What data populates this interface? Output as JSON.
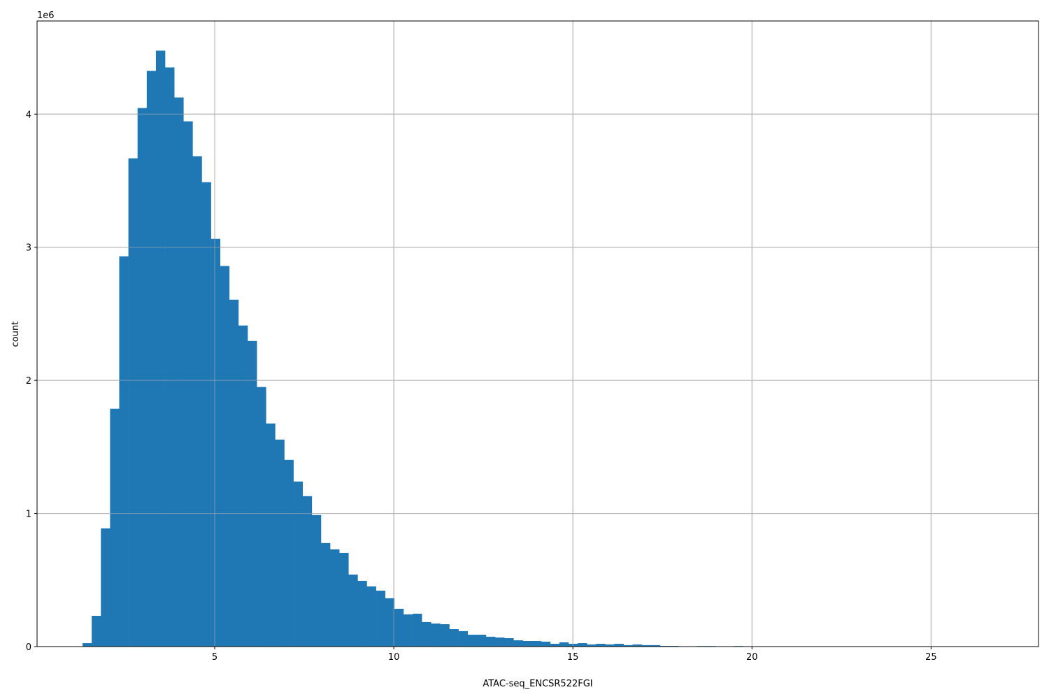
{
  "chart_data": {
    "type": "bar",
    "subtype": "histogram",
    "title": "",
    "xlabel": "ATAC-seq_ENCSR522FGI",
    "ylabel": "count",
    "y_offset_label": "1e6",
    "xlim": [
      0.04,
      28.0
    ],
    "ylim": [
      0,
      4700000
    ],
    "grid": true,
    "bar_color": "#1f77b4",
    "grid_color": "#b0b0b0",
    "x_ticks": [
      5,
      10,
      15,
      20,
      25
    ],
    "x_tick_labels": [
      "5",
      "10",
      "15",
      "20",
      "25"
    ],
    "y_ticks": [
      0,
      1000000,
      2000000,
      3000000,
      4000000
    ],
    "y_tick_labels": [
      "0",
      "1",
      "2",
      "3",
      "4"
    ],
    "bin_start": 1.31,
    "bin_width": 0.256,
    "counts": [
      26000,
      231000,
      888000,
      1787000,
      2932000,
      3668000,
      4046000,
      4325000,
      4477000,
      4351000,
      4125000,
      3946000,
      3684000,
      3489000,
      3063000,
      2859000,
      2606000,
      2412000,
      2296000,
      1950000,
      1676000,
      1555000,
      1403000,
      1240000,
      1130000,
      988000,
      778000,
      730000,
      704000,
      541000,
      494000,
      452000,
      420000,
      363000,
      284000,
      242000,
      247000,
      184000,
      173000,
      168000,
      131000,
      116000,
      89000,
      89000,
      74000,
      68000,
      63000,
      47000,
      42000,
      42000,
      37000,
      21000,
      32000,
      21000,
      26000,
      16000,
      21000,
      16000,
      21000,
      11000,
      16000,
      11000,
      11000,
      5000,
      5000,
      0,
      0,
      4000,
      4000,
      0,
      0,
      4000,
      0,
      0,
      0,
      0,
      0,
      0,
      0,
      0,
      0,
      0,
      0,
      0,
      0,
      0,
      0,
      0,
      0,
      0,
      0,
      0,
      0,
      0,
      0,
      0,
      0,
      0,
      0,
      1000
    ]
  }
}
